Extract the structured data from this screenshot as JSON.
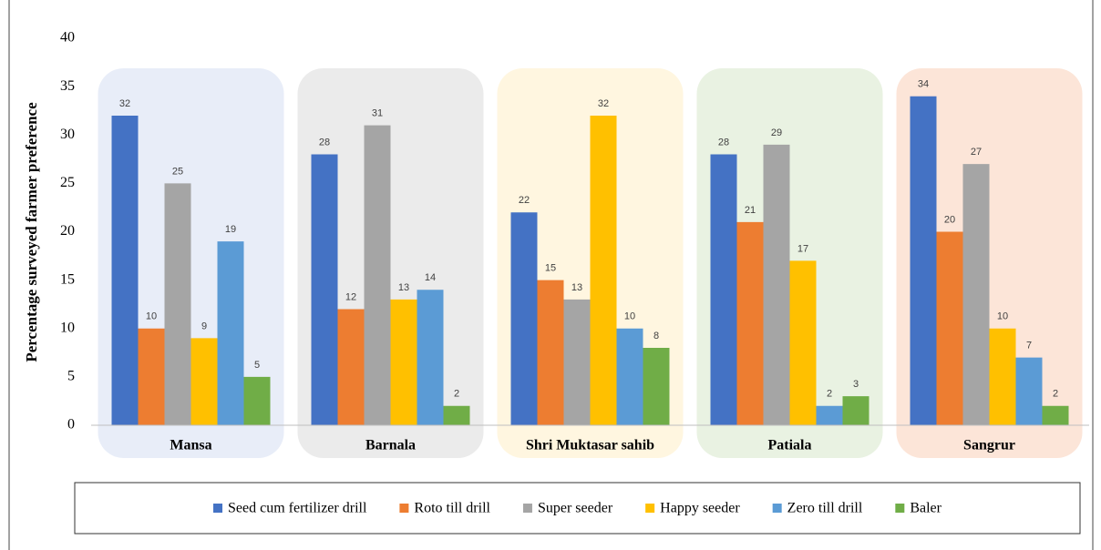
{
  "chart_data": {
    "type": "bar",
    "y_label": "Percentage surveyed farmer preference",
    "categories": [
      "Mansa",
      "Barnala",
      "Shri Muktasar sahib",
      "Patiala",
      "Sangrur"
    ],
    "category_backgrounds": [
      "#e8edf8",
      "#ebebeb",
      "#fff6e0",
      "#e9f2e2",
      "#fce5d8"
    ],
    "series": [
      {
        "name": "Seed cum fertilizer drill",
        "color": "#4472c4",
        "values": [
          32,
          28,
          22,
          28,
          34
        ]
      },
      {
        "name": "Roto till drill",
        "color": "#ed7d31",
        "values": [
          10,
          12,
          15,
          21,
          20
        ]
      },
      {
        "name": "Super seeder",
        "color": "#a5a5a5",
        "values": [
          25,
          31,
          13,
          29,
          27
        ]
      },
      {
        "name": "Happy seeder",
        "color": "#ffc000",
        "values": [
          9,
          13,
          32,
          17,
          10
        ]
      },
      {
        "name": "Zero till drill",
        "color": "#5b9bd5",
        "values": [
          19,
          14,
          10,
          2,
          7
        ]
      },
      {
        "name": "Baler",
        "color": "#70ad47",
        "values": [
          5,
          2,
          8,
          3,
          2
        ]
      }
    ],
    "ylim": [
      0,
      40
    ],
    "yticks": [
      0,
      5,
      10,
      15,
      20,
      25,
      30,
      35,
      40
    ],
    "grid": false,
    "legend": "bottom"
  }
}
